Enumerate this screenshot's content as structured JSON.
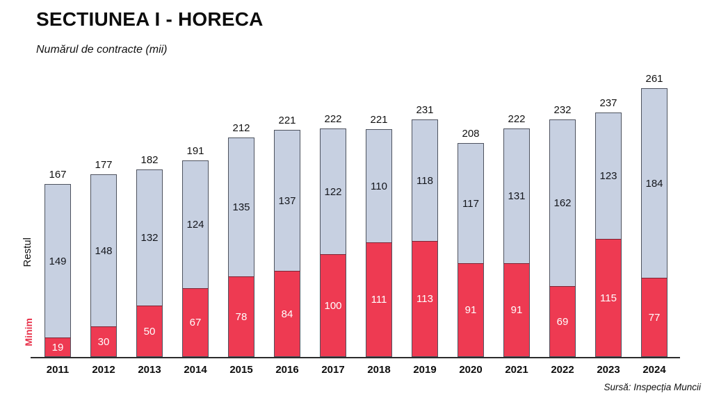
{
  "header": {
    "title": "SECTIUNEA I - HORECA",
    "subtitle": "Numărul de contracte (mii)"
  },
  "footer": {
    "source": "Sursă: Inspecția Muncii"
  },
  "axis_labels": {
    "restul": "Restul",
    "minim": "Minim"
  },
  "colors": {
    "minim": "#EE3A52",
    "restul": "#C7D0E1",
    "bar_border": "#4d525e",
    "axis": "#2b2b2b",
    "minim_label": "#E8324B",
    "text": "#111111"
  },
  "chart_data": {
    "type": "bar",
    "stacked": true,
    "title": "SECTIUNEA I - HORECA",
    "subtitle": "Numărul de contracte (mii)",
    "xlabel": "",
    "ylabel": "Numărul de contracte (mii)",
    "ylim": [
      0,
      270
    ],
    "grid": false,
    "legend_position": "left-rotated",
    "categories": [
      "2011",
      "2012",
      "2013",
      "2014",
      "2015",
      "2016",
      "2017",
      "2018",
      "2019",
      "2020",
      "2021",
      "2022",
      "2023",
      "2024"
    ],
    "series": [
      {
        "name": "Minim",
        "color": "#EE3A52",
        "values": [
          19,
          30,
          50,
          67,
          78,
          84,
          100,
          111,
          113,
          91,
          91,
          69,
          115,
          77
        ]
      },
      {
        "name": "Restul",
        "color": "#C7D0E1",
        "values": [
          149,
          148,
          132,
          124,
          135,
          137,
          122,
          110,
          118,
          117,
          131,
          162,
          123,
          184
        ]
      }
    ],
    "totals": [
      167,
      177,
      182,
      191,
      212,
      221,
      222,
      221,
      231,
      208,
      222,
      232,
      237,
      261
    ]
  }
}
